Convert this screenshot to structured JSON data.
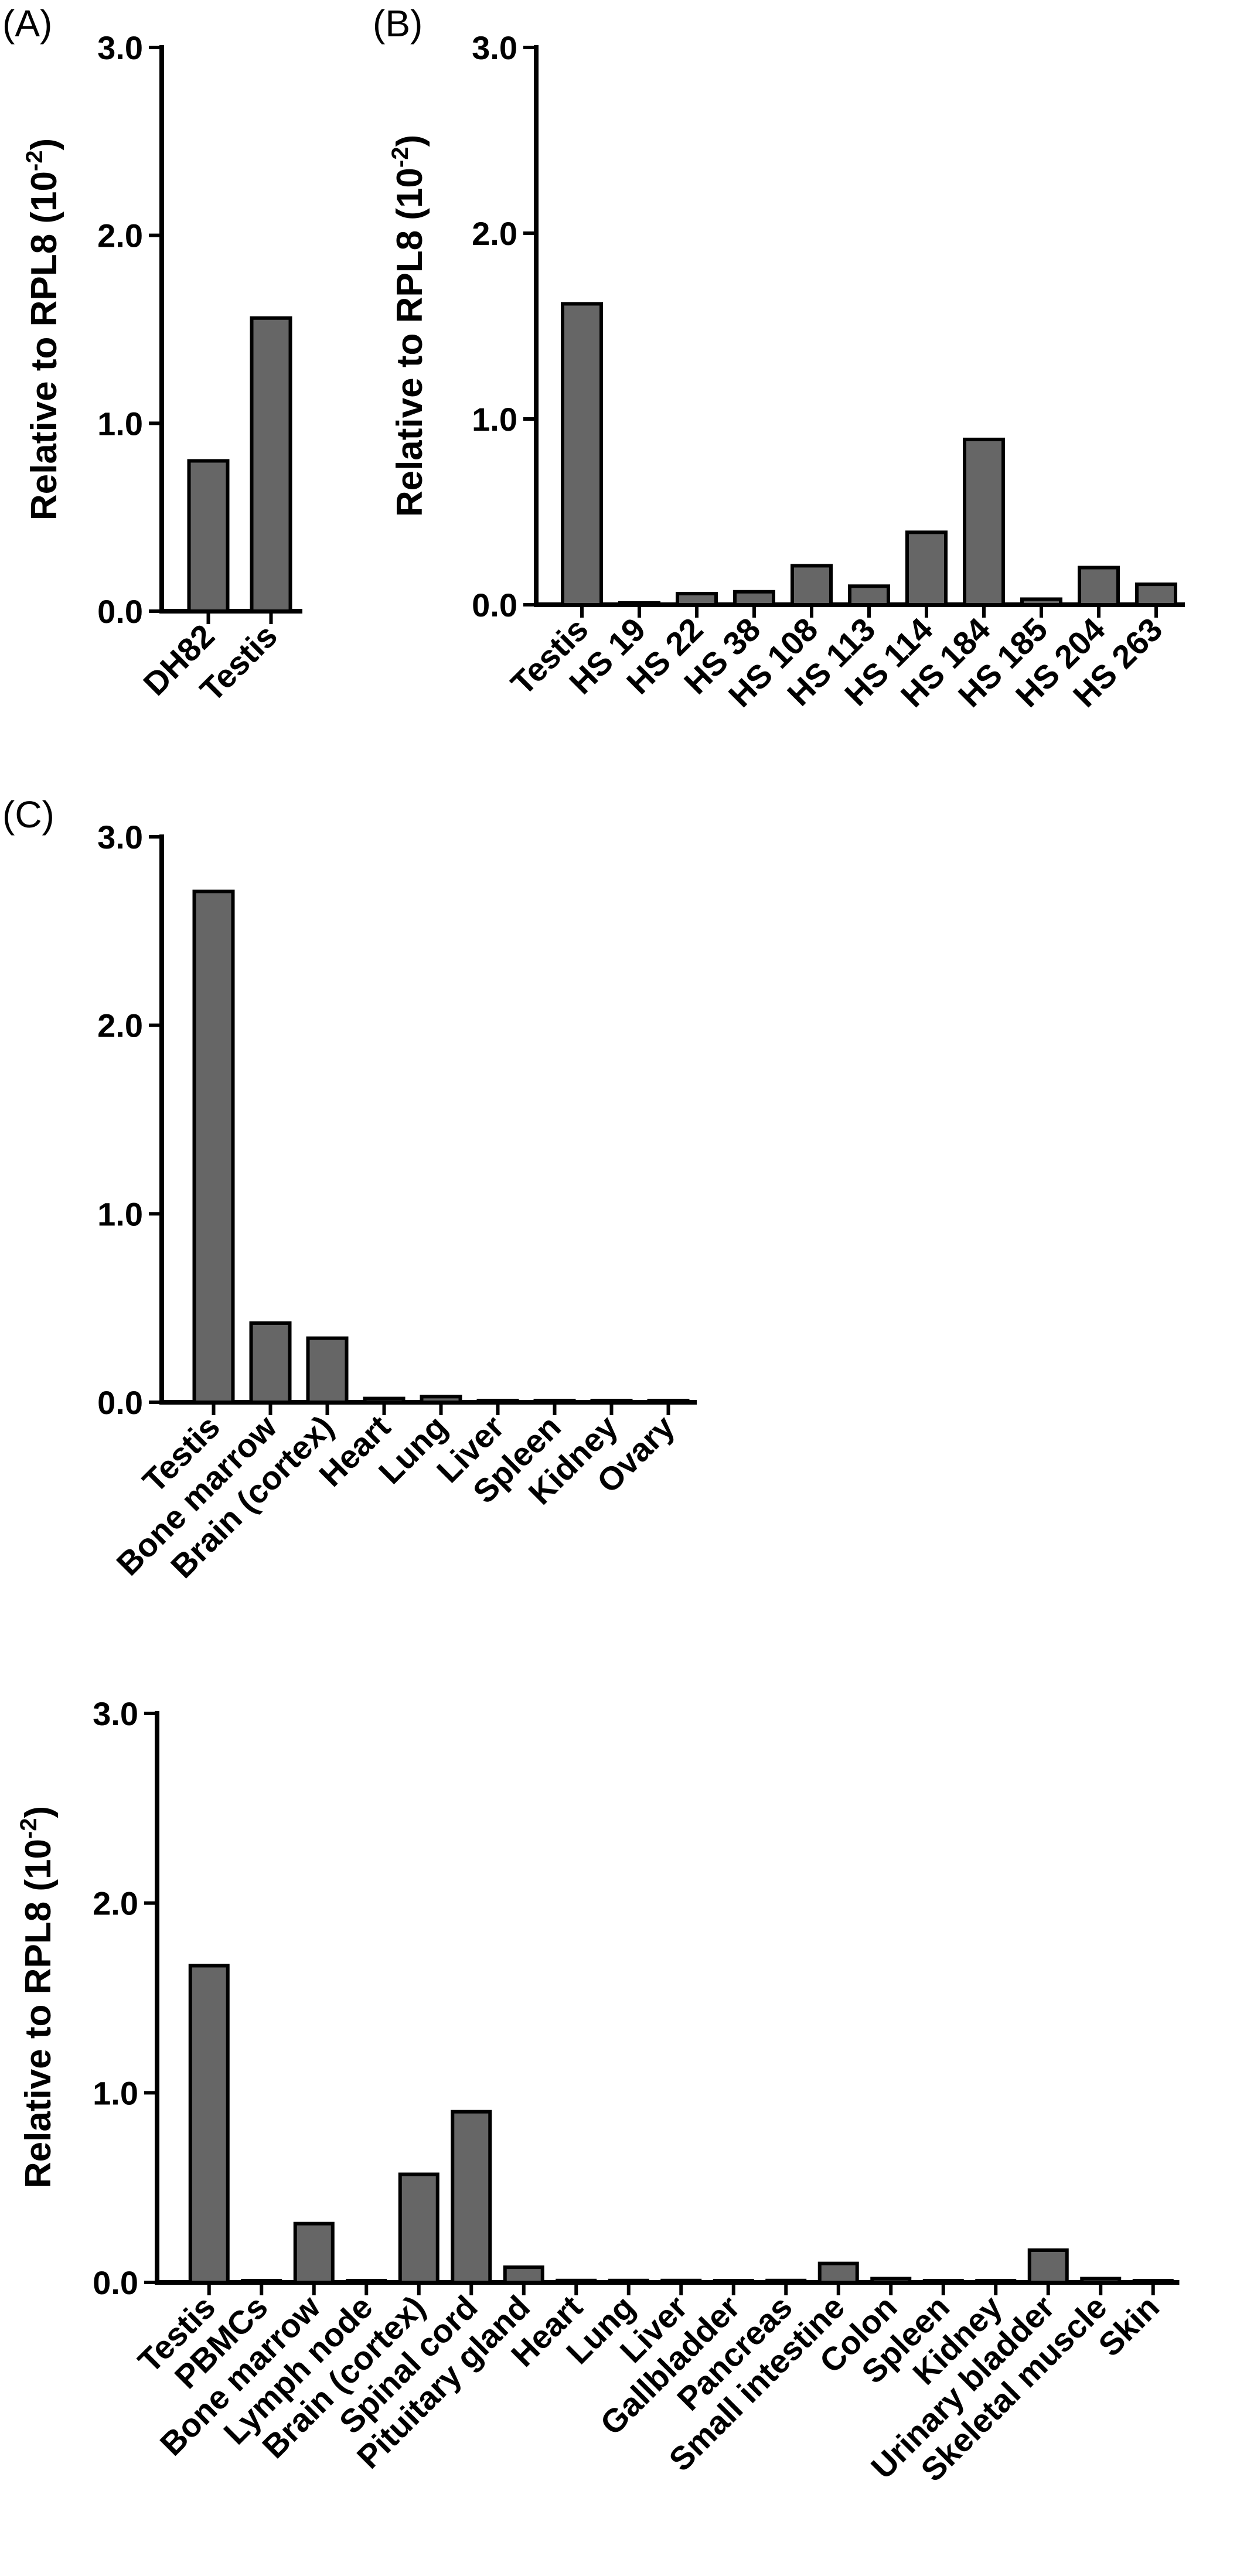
{
  "colors": {
    "bar_fill": "#666666",
    "axis": "#000000"
  },
  "chart_data": [
    {
      "type": "bar",
      "panel_label": "(A)",
      "ylabel": "Relative to RPL8 (10",
      "ylabel_exponent": "-2",
      "ylabel_suffix": ")",
      "ylim": [
        0,
        3
      ],
      "yticks": [
        "0.0",
        "1.0",
        "2.0",
        "3.0"
      ],
      "categories": [
        "DH82",
        "Testis"
      ],
      "values": [
        0.8,
        1.56
      ]
    },
    {
      "type": "bar",
      "panel_label": "(B)",
      "ylabel": "Relative to RPL8 (10",
      "ylabel_exponent": "-2",
      "ylabel_suffix": ")",
      "ylim": [
        0,
        3
      ],
      "yticks": [
        "0.0",
        "1.0",
        "2.0",
        "3.0"
      ],
      "categories": [
        "Testis",
        "HS 19",
        "HS 22",
        "HS 38",
        "HS 108",
        "HS 113",
        "HS 114",
        "HS 184",
        "HS 185",
        "HS 204",
        "HS 263"
      ],
      "values": [
        1.62,
        0.0,
        0.06,
        0.07,
        0.21,
        0.1,
        0.39,
        0.89,
        0.03,
        0.2,
        0.11
      ]
    },
    {
      "type": "bar",
      "panel_label": "(C)",
      "ylim": [
        0,
        3
      ],
      "yticks": [
        "0.0",
        "1.0",
        "2.0",
        "3.0"
      ],
      "categories": [
        "Testis",
        "Bone marrow",
        "Brain (cortex)",
        "Heart",
        "Lung",
        "Liver",
        "Spleen",
        "Kidney",
        "Ovary"
      ],
      "values": [
        2.71,
        0.42,
        0.34,
        0.02,
        0.03,
        0.0,
        0.0,
        0.0,
        0.0
      ]
    },
    {
      "type": "bar",
      "ylabel": "Relative to RPL8 (10",
      "ylabel_exponent": "-2",
      "ylabel_suffix": ")",
      "ylim": [
        0,
        3
      ],
      "yticks": [
        "0.0",
        "1.0",
        "2.0",
        "3.0"
      ],
      "categories": [
        "Testis",
        "PBMCs",
        "Bone marrow",
        "Lymph node",
        "Brain (cortex)",
        "Spinal cord",
        "Pituitary gland",
        "Heart",
        "Lung",
        "Liver",
        "Gallbladder",
        "Pancreas",
        "Small intestine",
        "Colon",
        "Spleen",
        "Kidney",
        "Urinary bladder",
        "Skeletal muscle",
        "Skin"
      ],
      "values": [
        1.67,
        0.0,
        0.31,
        0.0,
        0.57,
        0.9,
        0.08,
        0.01,
        0.01,
        0.01,
        0.0,
        0.01,
        0.1,
        0.02,
        0.0,
        0.0,
        0.17,
        0.02,
        0.0
      ]
    }
  ]
}
